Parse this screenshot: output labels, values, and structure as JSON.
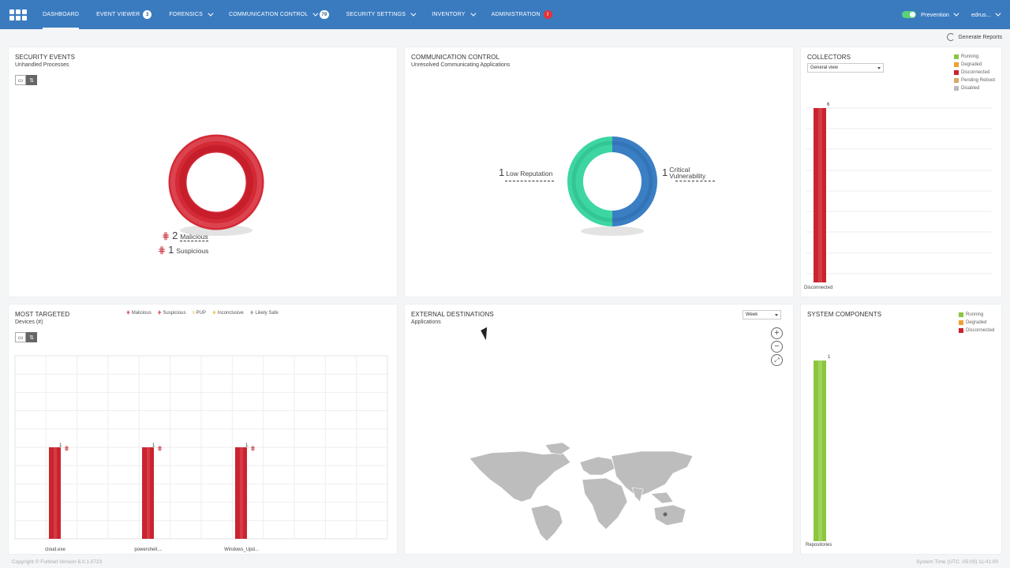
{
  "nav": {
    "items": [
      {
        "label": "DASHBOARD"
      },
      {
        "label": "EVENT VIEWER",
        "badge": "3"
      },
      {
        "label": "FORENSICS"
      },
      {
        "label": "COMMUNICATION CONTROL",
        "badge": "79"
      },
      {
        "label": "SECURITY SETTINGS"
      },
      {
        "label": "INVENTORY"
      },
      {
        "label": "ADMINISTRATION",
        "badge": "!"
      }
    ],
    "mode": "Prevention",
    "user": "edrus..."
  },
  "generate_reports": "Generate Reports",
  "security_events": {
    "title": "SECURITY EVENTS",
    "subtitle": "Unhandled Processes",
    "malicious_count": "2",
    "malicious_label": "Malicious",
    "suspicious_count": "1",
    "suspicious_label": "Suspicious",
    "color": "#d42a36"
  },
  "communication_control": {
    "title": "COMMUNICATION CONTROL",
    "subtitle": "Unresolved Communicating Applications",
    "low_rep_count": "1",
    "low_rep_label": "Low Reputation",
    "crit_count": "1",
    "crit_label1": "Critical",
    "crit_label2": "Vulnerability",
    "colors": {
      "low_reputation": "#3dd6a3",
      "critical": "#3a7fc4"
    }
  },
  "collectors": {
    "title": "COLLECTORS",
    "view": "General view",
    "legend": [
      {
        "label": "Running",
        "color": "#8cc63f"
      },
      {
        "label": "Degraded",
        "color": "#f0a030"
      },
      {
        "label": "Disconnected",
        "color": "#c9242f"
      },
      {
        "label": "Pending Reboot",
        "color": "#d6a86a"
      },
      {
        "label": "Disabled",
        "color": "#bbbbbb"
      }
    ],
    "bar_value": "6",
    "bar_category": "Disconnected"
  },
  "most_targeted": {
    "title": "MOST TARGETED",
    "subtitle": "Devices (#)",
    "legend": [
      {
        "label": "Malicious"
      },
      {
        "label": "Suspicious"
      },
      {
        "label": "PUP"
      },
      {
        "label": "Inconclusive"
      },
      {
        "label": "Likely Safe"
      }
    ]
  },
  "external_destinations": {
    "title": "EXTERNAL DESTINATIONS",
    "subtitle": "Applications",
    "range": "Week"
  },
  "system_components": {
    "title": "SYSTEM COMPONENTS",
    "legend": [
      {
        "label": "Running",
        "color": "#8cc63f"
      },
      {
        "label": "Degraded",
        "color": "#f0a030"
      },
      {
        "label": "Disconnected",
        "color": "#c9242f"
      }
    ],
    "bar_value": "1",
    "bar_category": "Repositories"
  },
  "chart_data": [
    {
      "type": "bar",
      "categories": [
        "cloud.exe",
        "powershell....",
        "Windows_Upd..."
      ],
      "values": [
        1,
        1,
        1
      ]
    },
    {
      "type": "bar",
      "categories": [
        "Disconnected"
      ],
      "values": [
        6
      ]
    },
    {
      "type": "bar",
      "categories": [
        "Repositories"
      ],
      "values": [
        1
      ]
    }
  ],
  "footer": {
    "left": "Copyright © Fortinet Version 6.0.1.0723",
    "right": "System Time (UTC -05:00) 11:41:00"
  }
}
